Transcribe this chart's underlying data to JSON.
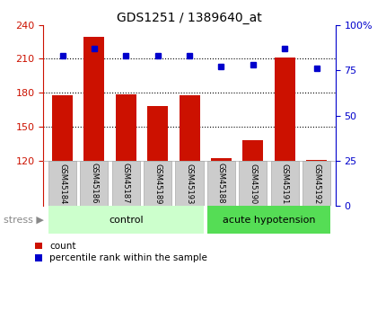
{
  "title": "GDS1251 / 1389640_at",
  "samples": [
    "GSM45184",
    "GSM45186",
    "GSM45187",
    "GSM45189",
    "GSM45193",
    "GSM45188",
    "GSM45190",
    "GSM45191",
    "GSM45192"
  ],
  "counts": [
    178,
    229,
    179,
    168,
    178,
    122,
    138,
    211,
    121
  ],
  "percentiles": [
    83,
    87,
    83,
    83,
    83,
    77,
    78,
    87,
    76
  ],
  "ylim_left": [
    120,
    240
  ],
  "ylim_right": [
    0,
    100
  ],
  "yticks_left": [
    120,
    150,
    180,
    210,
    240
  ],
  "yticks_right": [
    0,
    25,
    50,
    75,
    100
  ],
  "bar_color": "#cc1100",
  "dot_color": "#0000cc",
  "bg_color": "#ffffff",
  "tick_bg": "#cccccc",
  "n_control": 5,
  "n_acute": 4,
  "control_label": "control",
  "acute_label": "acute hypotension",
  "stress_label": "stress",
  "control_color": "#ccffcc",
  "acute_color": "#55dd55",
  "legend_count": "count",
  "legend_pct": "percentile rank within the sample",
  "title_fontsize": 10,
  "tick_fontsize": 8,
  "label_fontsize": 8
}
